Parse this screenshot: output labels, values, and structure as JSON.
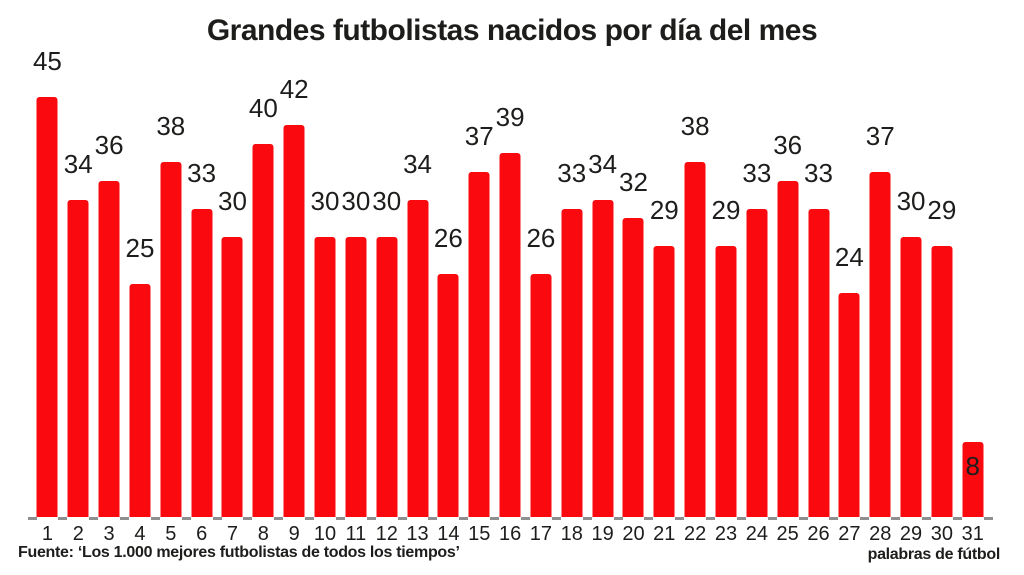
{
  "colors": {
    "bar": "#fa0a0f",
    "text": "#1d1d1b",
    "tick": "#8f8f8f",
    "background": "#ffffff"
  },
  "chart_data": {
    "type": "bar",
    "title": "Grandes futbolistas nacidos por día del mes",
    "categories": [
      "1",
      "2",
      "3",
      "4",
      "5",
      "6",
      "7",
      "8",
      "9",
      "10",
      "11",
      "12",
      "13",
      "14",
      "15",
      "16",
      "17",
      "18",
      "19",
      "20",
      "21",
      "22",
      "23",
      "24",
      "25",
      "26",
      "27",
      "28",
      "29",
      "30",
      "31"
    ],
    "values": [
      45,
      34,
      36,
      25,
      38,
      33,
      30,
      40,
      42,
      30,
      30,
      30,
      34,
      26,
      37,
      39,
      26,
      33,
      34,
      32,
      29,
      38,
      29,
      33,
      36,
      33,
      24,
      37,
      30,
      29,
      8
    ],
    "xlabel": "",
    "ylabel": "",
    "ylim": [
      0,
      49
    ],
    "grid": false,
    "legend": false,
    "bar_color": "#fa0a0f",
    "value_labels": true,
    "label_inside_bar_categories": [
      "31"
    ],
    "source_note": "Fuente: ‘Los 1.000 mejores futbolistas de todos los tiempos’",
    "credit": "palabras de fútbol"
  }
}
